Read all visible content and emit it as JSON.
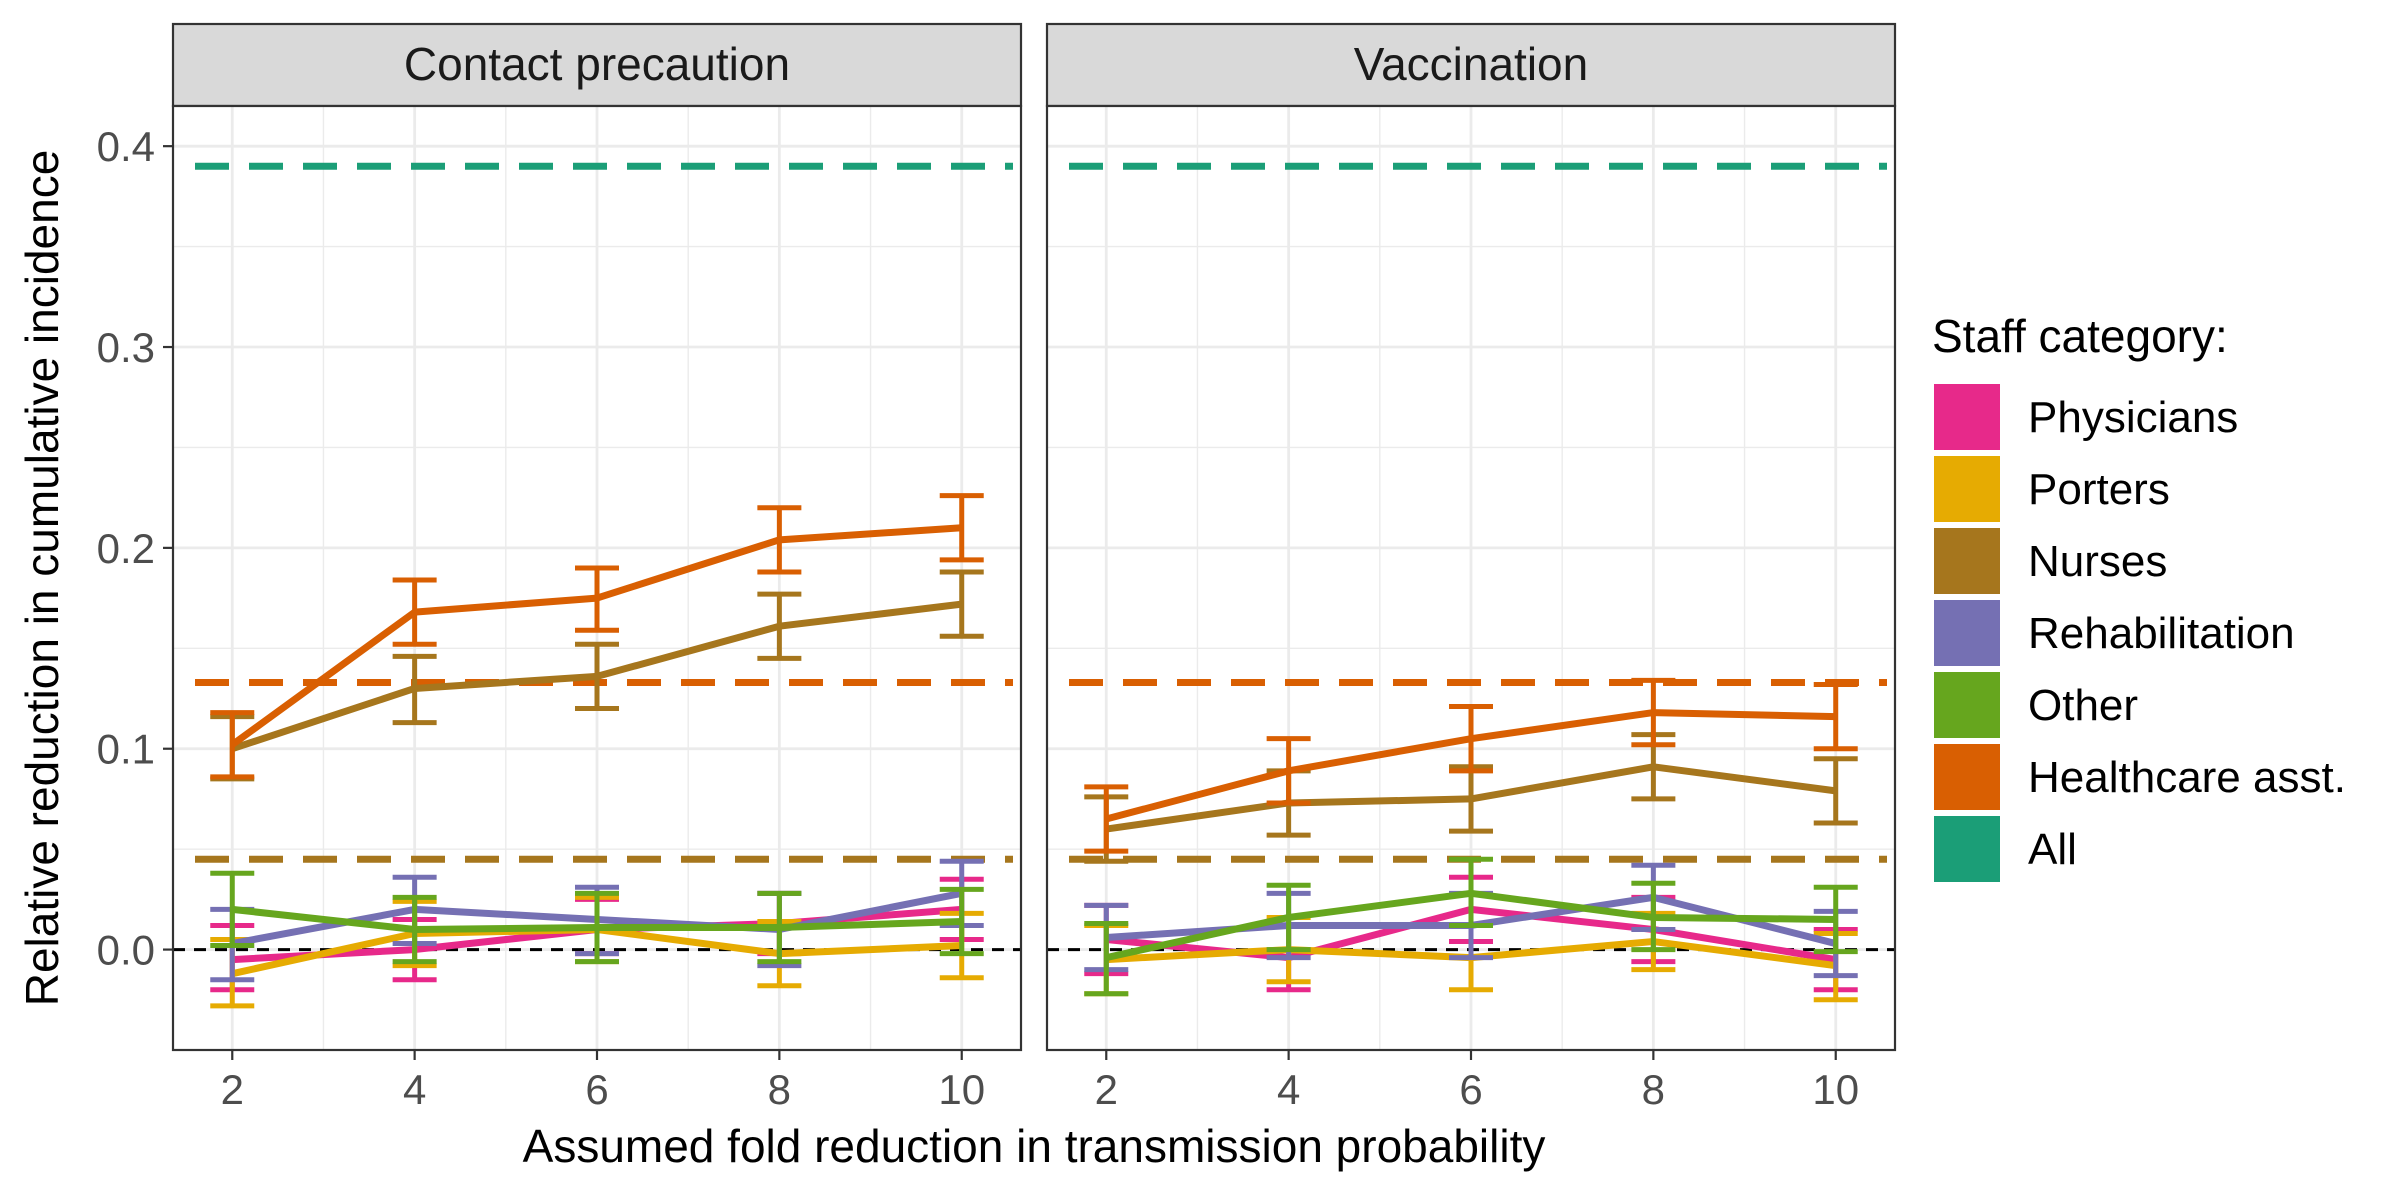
{
  "chart_data": {
    "type": "line",
    "xlabel": "Assumed fold reduction in transmission probability",
    "ylabel": "Relative reduction in cumulative incidence",
    "x": [
      2,
      4,
      6,
      8,
      10
    ],
    "xlim": [
      1.35,
      10.65
    ],
    "ylim": [
      -0.05,
      0.42
    ],
    "x_ticks": [
      "2",
      "4",
      "6",
      "8",
      "10"
    ],
    "y_ticks": [
      "0.0",
      "0.1",
      "0.2",
      "0.3",
      "0.4"
    ],
    "grid": true,
    "legend": {
      "title": "Staff category:",
      "position": "right",
      "entries": [
        "Physicians",
        "Porters",
        "Nurses",
        "Rehabilitation",
        "Other",
        "Healthcare asst.",
        "All"
      ]
    },
    "colors": {
      "Physicians": "#E7298A",
      "Porters": "#E6AB02",
      "Nurses": "#A6761D",
      "Rehabilitation": "#7570B3",
      "Other": "#66A61E",
      "Healthcare asst.": "#D95F02",
      "All": "#1B9E77"
    },
    "panels": [
      {
        "title": "Contact precaution",
        "reference_lines": [
          {
            "series": "All",
            "y": 0.39
          },
          {
            "series": "Healthcare asst.",
            "y": 0.133
          },
          {
            "series": "Nurses",
            "y": 0.045
          }
        ],
        "series": [
          {
            "name": "Physicians",
            "values": [
              -0.005,
              0.0,
              0.01,
              0.013,
              0.02
            ],
            "lower": [
              -0.02,
              -0.015,
              -0.002,
              -0.002,
              0.005
            ],
            "upper": [
              0.012,
              0.015,
              0.025,
              0.028,
              0.035
            ]
          },
          {
            "name": "Porters",
            "values": [
              -0.012,
              0.008,
              0.01,
              -0.002,
              0.002
            ],
            "lower": [
              -0.028,
              -0.008,
              -0.006,
              -0.018,
              -0.014
            ],
            "upper": [
              0.005,
              0.024,
              0.026,
              0.014,
              0.018
            ]
          },
          {
            "name": "Rehabilitation",
            "values": [
              0.003,
              0.02,
              0.015,
              0.01,
              0.028
            ],
            "lower": [
              -0.015,
              0.003,
              -0.002,
              -0.008,
              0.012
            ],
            "upper": [
              0.02,
              0.036,
              0.031,
              0.028,
              0.044
            ]
          },
          {
            "name": "Other",
            "values": [
              0.02,
              0.01,
              0.011,
              0.011,
              0.014
            ],
            "lower": [
              0.002,
              -0.006,
              -0.006,
              -0.006,
              -0.002
            ],
            "upper": [
              0.038,
              0.026,
              0.028,
              0.028,
              0.03
            ]
          },
          {
            "name": "Nurses",
            "values": [
              0.1,
              0.13,
              0.136,
              0.161,
              0.172
            ],
            "lower": [
              0.085,
              0.113,
              0.12,
              0.145,
              0.156
            ],
            "upper": [
              0.116,
              0.146,
              0.152,
              0.177,
              0.188
            ]
          },
          {
            "name": "Healthcare asst.",
            "values": [
              0.102,
              0.168,
              0.175,
              0.204,
              0.21
            ],
            "lower": [
              0.086,
              0.152,
              0.159,
              0.188,
              0.194
            ],
            "upper": [
              0.118,
              0.184,
              0.19,
              0.22,
              0.226
            ]
          }
        ]
      },
      {
        "title": "Vaccination",
        "reference_lines": [
          {
            "series": "All",
            "y": 0.39
          },
          {
            "series": "Healthcare asst.",
            "y": 0.133
          },
          {
            "series": "Nurses",
            "y": 0.045
          }
        ],
        "series": [
          {
            "name": "Physicians",
            "values": [
              0.005,
              -0.004,
              0.02,
              0.01,
              -0.005
            ],
            "lower": [
              -0.012,
              -0.02,
              0.004,
              -0.006,
              -0.02
            ],
            "upper": [
              0.022,
              0.012,
              0.036,
              0.026,
              0.01
            ]
          },
          {
            "name": "Porters",
            "values": [
              -0.005,
              0.0,
              -0.004,
              0.004,
              -0.008
            ],
            "lower": [
              -0.022,
              -0.016,
              -0.02,
              -0.01,
              -0.025
            ],
            "upper": [
              0.012,
              0.016,
              0.012,
              0.018,
              0.008
            ]
          },
          {
            "name": "Rehabilitation",
            "values": [
              0.006,
              0.012,
              0.012,
              0.026,
              0.003
            ],
            "lower": [
              -0.01,
              -0.004,
              -0.004,
              0.01,
              -0.013
            ],
            "upper": [
              0.022,
              0.028,
              0.028,
              0.042,
              0.019
            ]
          },
          {
            "name": "Other",
            "values": [
              -0.004,
              0.016,
              0.028,
              0.016,
              0.015
            ],
            "lower": [
              -0.022,
              0.0,
              0.012,
              0.0,
              -0.001
            ],
            "upper": [
              0.013,
              0.032,
              0.045,
              0.033,
              0.031
            ]
          },
          {
            "name": "Nurses",
            "values": [
              0.06,
              0.073,
              0.075,
              0.091,
              0.079
            ],
            "lower": [
              0.044,
              0.057,
              0.059,
              0.075,
              0.063
            ],
            "upper": [
              0.076,
              0.089,
              0.091,
              0.107,
              0.095
            ]
          },
          {
            "name": "Healthcare asst.",
            "values": [
              0.065,
              0.089,
              0.105,
              0.118,
              0.116
            ],
            "lower": [
              0.049,
              0.073,
              0.089,
              0.102,
              0.1
            ],
            "upper": [
              0.081,
              0.105,
              0.121,
              0.134,
              0.132
            ]
          }
        ]
      }
    ]
  }
}
